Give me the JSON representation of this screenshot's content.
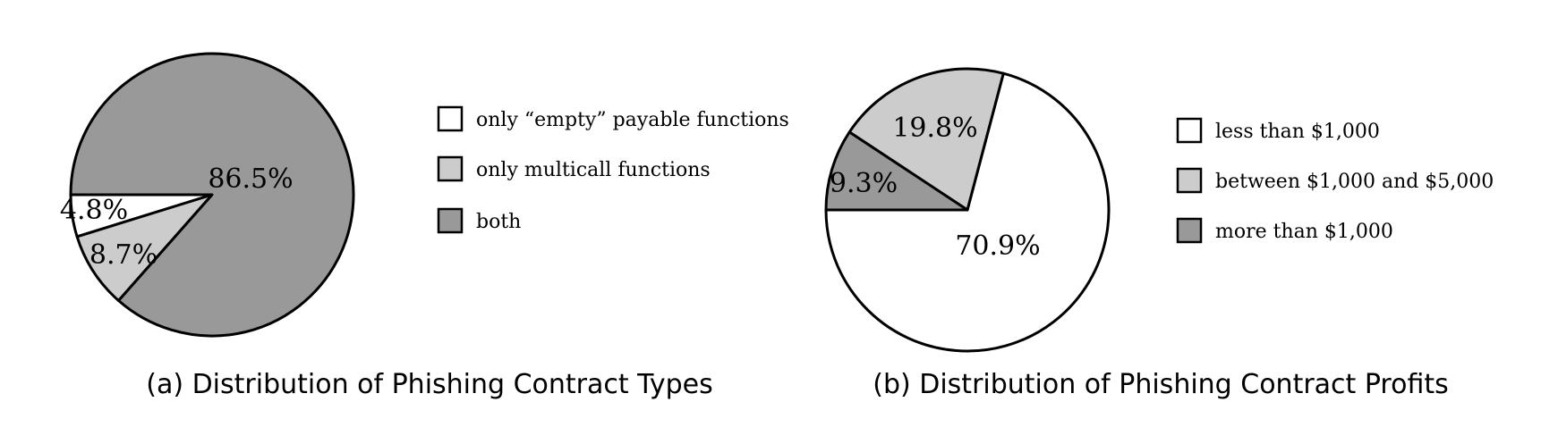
{
  "chart_data": [
    {
      "type": "pie",
      "title": "(a) Distribution of Phishing Contract Types",
      "slices": [
        {
          "label": "only “empty” payable functions",
          "value": 4.8,
          "value_label": "4.8%",
          "color": "#ffffff"
        },
        {
          "label": "only multicall functions",
          "value": 8.7,
          "value_label": "8.7%",
          "color": "#cccccc"
        },
        {
          "label": "both",
          "value": 86.5,
          "value_label": "86.5%",
          "color": "#999999"
        }
      ],
      "legend_position": "right"
    },
    {
      "type": "pie",
      "title": "(b) Distribution of Phishing Contract Profits",
      "slices": [
        {
          "label": "less than $1,000",
          "value": 70.9,
          "value_label": "70.9%",
          "color": "#ffffff"
        },
        {
          "label": "between $1,000 and $5,000",
          "value": 19.8,
          "value_label": "19.8%",
          "color": "#cccccc"
        },
        {
          "label": "more than $1,000",
          "value": 9.3,
          "value_label": "9.3%",
          "color": "#999999"
        }
      ],
      "legend_position": "right"
    }
  ]
}
